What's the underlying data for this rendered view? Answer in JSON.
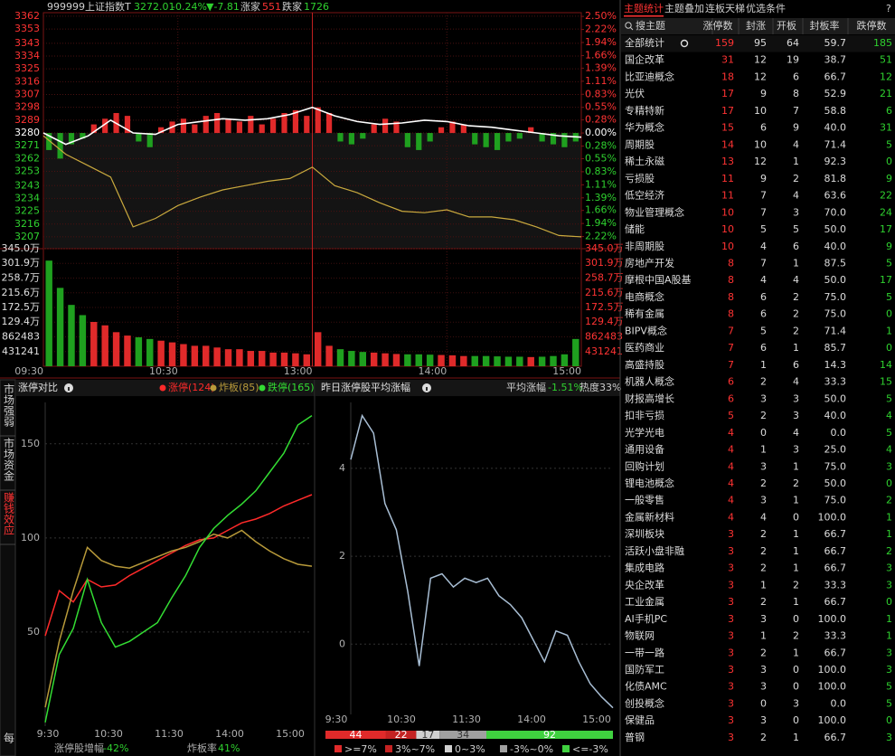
{
  "quote": {
    "code": "999999",
    "name": "上证指数",
    "flag": "T",
    "price": "3272.01",
    "pct": "-0.24%",
    "change": "▼-7.81",
    "up_label": "涨家",
    "up": "551",
    "down_label": "跌家",
    "down": "1726"
  },
  "intraday": {
    "type": "line",
    "ylim": [
      3198.7,
      3364.5
    ],
    "yticks": [
      3362,
      3353,
      3343,
      3334,
      3325,
      3316,
      3307,
      3298,
      3289,
      3280,
      3271,
      3262,
      3253,
      3243,
      3234,
      3225,
      3216,
      3207
    ],
    "y2lim": [
      -2.48,
      2.58
    ],
    "y2ticks": [
      {
        "value": 2.5,
        "label": "2.50%"
      },
      {
        "value": 2.22,
        "label": "2.22%"
      },
      {
        "value": 1.94,
        "label": "1.94%"
      },
      {
        "value": 1.66,
        "label": "1.66%"
      },
      {
        "value": 1.39,
        "label": "1.39%"
      },
      {
        "value": 1.11,
        "label": "1.11%"
      },
      {
        "value": 0.83,
        "label": "0.83%"
      },
      {
        "value": 0.55,
        "label": "0.55%"
      },
      {
        "value": 0.28,
        "label": "0.28%"
      },
      {
        "value": 0,
        "label": "0.00%"
      },
      {
        "value": -0.28,
        "label": "0.28%"
      },
      {
        "value": -0.55,
        "label": "0.55%"
      },
      {
        "value": -0.83,
        "label": "0.83%"
      },
      {
        "value": -1.11,
        "label": "1.11%"
      },
      {
        "value": -1.39,
        "label": "1.39%"
      },
      {
        "value": -1.66,
        "label": "1.66%"
      },
      {
        "value": -1.94,
        "label": "1.94%"
      },
      {
        "value": -2.22,
        "label": "2.22%"
      }
    ],
    "xlabels": [
      "09:30",
      "10:30",
      "13:00",
      "14:00",
      "15:00"
    ],
    "price": {
      "color": "#ffffff",
      "values": [
        3280,
        3272,
        3278,
        3289,
        3280,
        3279,
        3286,
        3288,
        3290,
        3289,
        3290,
        3293,
        3298,
        3292,
        3288,
        3286,
        3287,
        3289,
        3288,
        3285,
        3284,
        3282,
        3280,
        3278,
        3277
      ]
    },
    "index_line": {
      "color": "#c9a93e",
      "values": [
        3278,
        3265,
        3257,
        3249,
        3214,
        3220,
        3229,
        3235,
        3240,
        3243,
        3246,
        3248,
        3256,
        3243,
        3238,
        3231,
        3225,
        3224,
        3226,
        3221,
        3221,
        3219,
        3214,
        3208,
        3207
      ]
    },
    "breadth": {
      "up_color": "#e02a2a",
      "down_color": "#1fa01f",
      "values": [
        3268,
        3262,
        3272,
        3276,
        3286,
        3290,
        3294,
        3292,
        3274,
        3270,
        3284,
        3288,
        3290,
        3286,
        3292,
        3294,
        3290,
        3288,
        3292,
        3286,
        3290,
        3294,
        3296,
        3292,
        3298,
        3294,
        3274,
        3272,
        3276,
        3286,
        3290,
        3288,
        3270,
        3268,
        3274,
        3284,
        3288,
        3286,
        3272,
        3270,
        3268,
        3274,
        3276,
        3284,
        3274,
        3272,
        3270,
        3274
      ]
    },
    "volume": {
      "ylim": [
        0,
        3450000
      ],
      "yticks": [
        {
          "value": 3450000,
          "label": "345.0万"
        },
        {
          "value": 3019000,
          "label": "301.9万"
        },
        {
          "value": 2587000,
          "label": "258.7万"
        },
        {
          "value": 2156000,
          "label": "215.6万"
        },
        {
          "value": 1725000,
          "label": "172.5万"
        },
        {
          "value": 1294000,
          "label": "129.4万"
        },
        862483,
        431241
      ],
      "values": [
        3100000,
        2300000,
        1800000,
        1500000,
        1300000,
        1200000,
        1000000,
        900000,
        850000,
        800000,
        750000,
        700000,
        650000,
        600000,
        600000,
        550000,
        500000,
        500000,
        450000,
        450000,
        400000,
        400000,
        380000,
        350000,
        1000000,
        600000,
        500000,
        450000,
        420000,
        400000,
        380000,
        360000,
        350000,
        350000,
        340000,
        330000,
        320000,
        300000,
        300000,
        300000,
        290000,
        280000,
        280000,
        270000,
        280000,
        300000,
        350000,
        800000
      ]
    }
  },
  "limit_compare": {
    "type": "line",
    "tabs": [
      "市场强弱",
      "市场资金",
      "赚钱效应",
      "每"
    ],
    "title": "涨停对比",
    "series": [
      {
        "name": "涨停(124)",
        "color": "#ff2a2a",
        "values": [
          48,
          72,
          66,
          78,
          74,
          75,
          80,
          84,
          88,
          92,
          96,
          99,
          100,
          104,
          108,
          110,
          113,
          117,
          120,
          123
        ]
      },
      {
        "name": "炸板(85)",
        "color": "#b89a3a",
        "values": [
          10,
          45,
          72,
          95,
          88,
          85,
          84,
          87,
          90,
          93,
          95,
          98,
          102,
          100,
          104,
          98,
          93,
          89,
          86,
          85
        ]
      },
      {
        "name": "跌停(165)",
        "color": "#33dd33",
        "values": [
          2,
          38,
          52,
          78,
          55,
          42,
          45,
          50,
          55,
          68,
          80,
          95,
          105,
          112,
          118,
          125,
          135,
          145,
          160,
          165
        ]
      }
    ],
    "ylim": [
      0,
      172
    ],
    "yticks": [
      50,
      100,
      150
    ],
    "xlabels": [
      "9:30",
      "10:30",
      "11:30",
      "14:00",
      "15:00"
    ],
    "footer": [
      {
        "label": "涨停股增幅",
        "value": "-42%"
      },
      {
        "label": "炸板率",
        "value": "41%"
      }
    ]
  },
  "yesterday": {
    "type": "line",
    "title": "昨日涨停股平均涨幅",
    "avg_label": "平均涨幅",
    "avg_value": "-1.51%",
    "heat": "热度33%",
    "color": "#a8bed4",
    "ylim": [
      -1.6,
      5.5
    ],
    "yticks": [
      0,
      2,
      4
    ],
    "xlabels": [
      "9:30",
      "10:30",
      "11:30",
      "14:00",
      "15:00"
    ],
    "values": [
      4.2,
      5.2,
      4.8,
      3.2,
      2.6,
      1.2,
      -0.5,
      1.5,
      1.6,
      1.3,
      1.5,
      1.4,
      1.5,
      1.1,
      0.9,
      0.6,
      0.1,
      -0.4,
      0.3,
      0.2,
      -0.4,
      -0.9,
      -1.2,
      -1.45
    ],
    "distribution": {
      "categories": [
        ">=7%",
        "3%~7%",
        "0~3%",
        "-3%~0%",
        "<=-3%"
      ],
      "values": [
        44,
        22,
        17,
        34,
        92
      ],
      "colors": [
        "#e02a2a",
        "#c42222",
        "#d0d0d0",
        "#a0a0a0",
        "#3fd13f"
      ]
    }
  },
  "themes": {
    "tabs": [
      "主题统计",
      "主题叠加",
      "连板天梯",
      "优选条件"
    ],
    "help": "?",
    "columns": [
      "搜主题",
      "涨停数",
      "封涨",
      "开板",
      "封板率",
      "跌停数"
    ],
    "rows": [
      [
        "全部统计",
        "159",
        "95",
        "64",
        "59.7",
        "185"
      ],
      [
        "国企改革",
        "31",
        "12",
        "19",
        "38.7",
        "51"
      ],
      [
        "比亚迪概念",
        "18",
        "12",
        "6",
        "66.7",
        "12"
      ],
      [
        "光伏",
        "17",
        "9",
        "8",
        "52.9",
        "21"
      ],
      [
        "专精特新",
        "17",
        "10",
        "7",
        "58.8",
        "6"
      ],
      [
        "华为概念",
        "15",
        "6",
        "9",
        "40.0",
        "31"
      ],
      [
        "周期股",
        "14",
        "10",
        "4",
        "71.4",
        "5"
      ],
      [
        "稀土永磁",
        "13",
        "12",
        "1",
        "92.3",
        "0"
      ],
      [
        "亏损股",
        "11",
        "9",
        "2",
        "81.8",
        "9"
      ],
      [
        "低空经济",
        "11",
        "7",
        "4",
        "63.6",
        "22"
      ],
      [
        "物业管理概念",
        "10",
        "7",
        "3",
        "70.0",
        "24"
      ],
      [
        "储能",
        "10",
        "5",
        "5",
        "50.0",
        "17"
      ],
      [
        "非周期股",
        "10",
        "4",
        "6",
        "40.0",
        "9"
      ],
      [
        "房地产开发",
        "8",
        "7",
        "1",
        "87.5",
        "5"
      ],
      [
        "摩根中国A股基",
        "8",
        "4",
        "4",
        "50.0",
        "17"
      ],
      [
        "电商概念",
        "8",
        "6",
        "2",
        "75.0",
        "5"
      ],
      [
        "稀有金属",
        "8",
        "6",
        "2",
        "75.0",
        "0"
      ],
      [
        "BIPV概念",
        "7",
        "5",
        "2",
        "71.4",
        "1"
      ],
      [
        "医药商业",
        "7",
        "6",
        "1",
        "85.7",
        "0"
      ],
      [
        "高盛持股",
        "7",
        "1",
        "6",
        "14.3",
        "14"
      ],
      [
        "机器人概念",
        "6",
        "2",
        "4",
        "33.3",
        "15"
      ],
      [
        "财报高增长",
        "6",
        "3",
        "3",
        "50.0",
        "5"
      ],
      [
        "扣非亏损",
        "5",
        "2",
        "3",
        "40.0",
        "4"
      ],
      [
        "光学光电",
        "4",
        "0",
        "4",
        "0.0",
        "5"
      ],
      [
        "通用设备",
        "4",
        "1",
        "3",
        "25.0",
        "4"
      ],
      [
        "回购计划",
        "4",
        "3",
        "1",
        "75.0",
        "3"
      ],
      [
        "锂电池概念",
        "4",
        "2",
        "2",
        "50.0",
        "0"
      ],
      [
        "一般零售",
        "4",
        "3",
        "1",
        "75.0",
        "2"
      ],
      [
        "金属新材料",
        "4",
        "4",
        "0",
        "100.0",
        "1"
      ],
      [
        "深圳板块",
        "3",
        "2",
        "1",
        "66.7",
        "1"
      ],
      [
        "活跃小盘非融",
        "3",
        "2",
        "1",
        "66.7",
        "2"
      ],
      [
        "集成电路",
        "3",
        "2",
        "1",
        "66.7",
        "3"
      ],
      [
        "央企改革",
        "3",
        "1",
        "2",
        "33.3",
        "3"
      ],
      [
        "工业金属",
        "3",
        "2",
        "1",
        "66.7",
        "0"
      ],
      [
        "AI手机PC",
        "3",
        "3",
        "0",
        "100.0",
        "1"
      ],
      [
        "物联网",
        "3",
        "1",
        "2",
        "33.3",
        "1"
      ],
      [
        "一带一路",
        "3",
        "2",
        "1",
        "66.7",
        "3"
      ],
      [
        "国防军工",
        "3",
        "3",
        "0",
        "100.0",
        "3"
      ],
      [
        "化债AMC",
        "3",
        "3",
        "0",
        "100.0",
        "5"
      ],
      [
        "创投概念",
        "3",
        "0",
        "3",
        "0.0",
        "5"
      ],
      [
        "保健品",
        "3",
        "3",
        "0",
        "100.0",
        "0"
      ],
      [
        "普钢",
        "3",
        "2",
        "1",
        "66.7",
        "3"
      ]
    ]
  }
}
